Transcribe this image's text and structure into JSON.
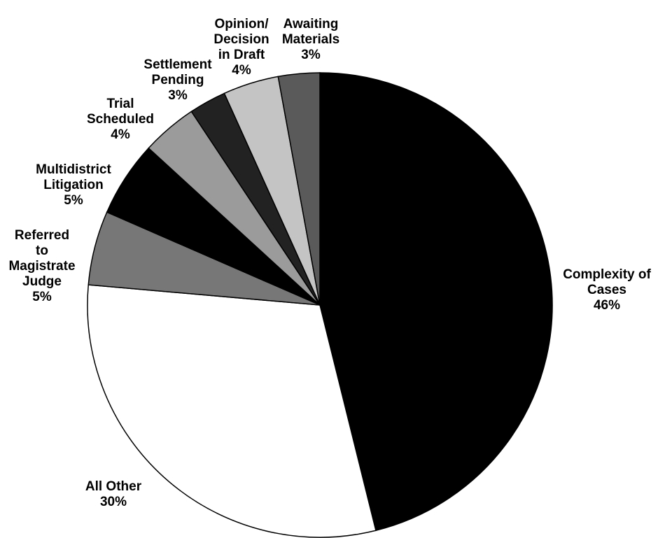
{
  "chart_data": {
    "type": "pie",
    "slices": [
      {
        "key": "complexity",
        "label": [
          "Complexity of",
          "Cases"
        ],
        "pct_label": "46%",
        "value": 46.5,
        "color": "#000000"
      },
      {
        "key": "all-other",
        "label": [
          "All Other"
        ],
        "pct_label": "30%",
        "value": 30.5,
        "color": "#ffffff"
      },
      {
        "key": "referred",
        "label": [
          "Referred",
          "to",
          "Magistrate",
          "Judge"
        ],
        "pct_label": "5%",
        "value": 5.2,
        "color": "#777777"
      },
      {
        "key": "multidistrict",
        "label": [
          "Multidistrict",
          "Litigation"
        ],
        "pct_label": "5%",
        "value": 5.3,
        "color": "#000000"
      },
      {
        "key": "trial",
        "label": [
          "Trial",
          "Scheduled"
        ],
        "pct_label": "4%",
        "value": 3.9,
        "color": "#9b9b9b"
      },
      {
        "key": "settlement",
        "label": [
          "Settlement",
          "Pending"
        ],
        "pct_label": "3%",
        "value": 2.6,
        "color": "#222222"
      },
      {
        "key": "opinion",
        "label": [
          "Opinion/",
          "Decision",
          "in Draft"
        ],
        "pct_label": "4%",
        "value": 3.9,
        "color": "#c4c4c4"
      },
      {
        "key": "awaiting",
        "label": [
          "Awaiting",
          "Materials"
        ],
        "pct_label": "3%",
        "value": 2.9,
        "color": "#5a5a5a"
      }
    ],
    "start": "12 o'clock",
    "direction": "clockwise"
  }
}
